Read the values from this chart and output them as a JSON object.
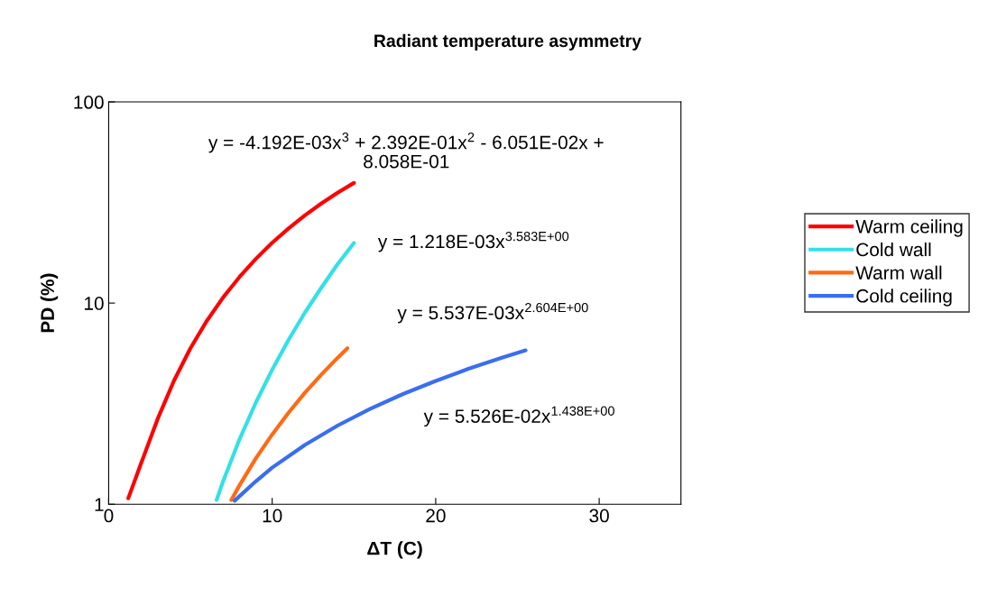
{
  "chart_data": {
    "type": "line",
    "title": "Radiant temperature asymmetry",
    "xlabel": "ΔT (C)",
    "ylabel": "PD (%)",
    "log": "y",
    "xlim": [
      0,
      35
    ],
    "xticks": [
      0,
      10,
      20,
      30
    ],
    "ylim": [
      1,
      100
    ],
    "yticks": [
      1,
      10,
      100
    ],
    "grid": false,
    "legend": "right",
    "marker": "none",
    "line_style": "solid",
    "series": [
      {
        "name": "Warm ceiling",
        "color": "#ff0000",
        "x": [
          1.2,
          2,
          3,
          4,
          5,
          6,
          7,
          8,
          9,
          10,
          11,
          12,
          13,
          14,
          15
        ],
        "values": [
          1.07,
          1.61,
          2.66,
          4.12,
          5.96,
          8.15,
          10.67,
          13.48,
          16.58,
          19.93,
          23.5,
          27.28,
          31.23,
          35.34,
          39.57
        ]
      },
      {
        "name": "Cold wall",
        "color": "#33e0e8",
        "x": [
          6.6,
          7,
          8,
          9,
          10,
          11,
          12,
          13,
          14,
          15
        ],
        "values": [
          1.05,
          1.3,
          2.1,
          3.2,
          4.66,
          6.56,
          8.96,
          11.9,
          15.6,
          19.9
        ]
      },
      {
        "name": "Warm wall",
        "color": "#ff6a13",
        "x": [
          7.5,
          8,
          9,
          10,
          11,
          12,
          13,
          14,
          14.6
        ],
        "values": [
          1.05,
          1.24,
          1.69,
          2.22,
          2.85,
          3.58,
          4.4,
          5.34,
          5.96
        ]
      },
      {
        "name": "Cold ceiling",
        "color": "#3a6ef0",
        "x": [
          7.7,
          9,
          10,
          12,
          14,
          16,
          18,
          20,
          22,
          24,
          25.5
        ],
        "values": [
          1.04,
          1.3,
          1.52,
          1.97,
          2.46,
          2.98,
          3.53,
          4.1,
          4.71,
          5.33,
          5.82
        ]
      }
    ],
    "annotations": [
      "y = -4.192E-03x$^{3}$ + 2.392E-01x$^{2}$ - 6.051E-02x +\n8.058E-01",
      "y = 1.218E-03x$^{3.583E+00}$",
      "y = 5.537E-03x$^{2.604E+00}$",
      "y = 5.526E-02x$^{1.438E+00}$"
    ]
  }
}
